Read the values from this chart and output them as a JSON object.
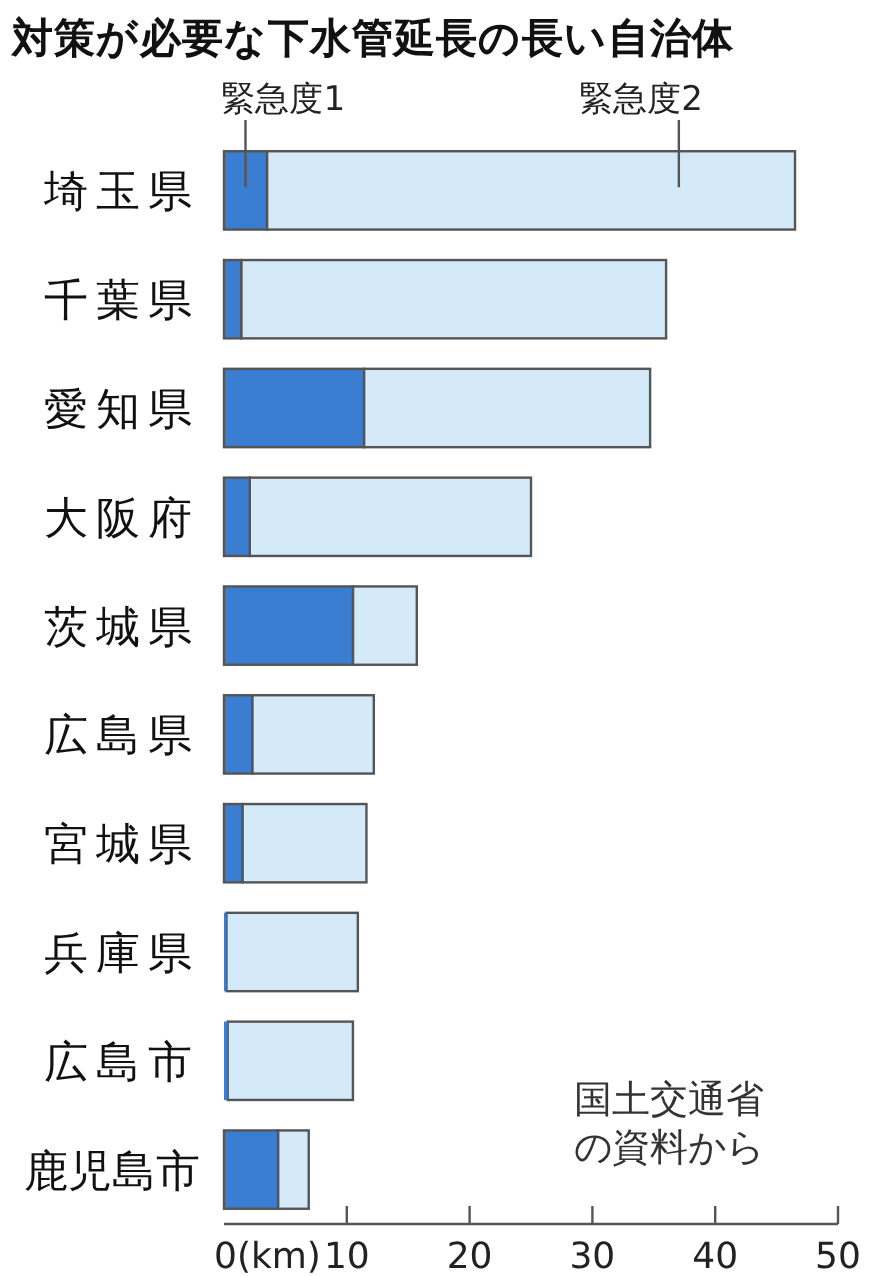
{
  "chart_data": {
    "type": "bar",
    "orientation": "horizontal",
    "stacked": true,
    "title": "対策が必要な下水管延長の長い自治体",
    "categories": [
      "埼玉県",
      "千葉県",
      "愛知県",
      "大阪府",
      "茨城県",
      "広島県",
      "宮城県",
      "兵庫県",
      "広島市",
      "鹿児島市"
    ],
    "series": [
      {
        "name": "緊急度1",
        "color": "#3b7dd0",
        "values": [
          3.5,
          1.4,
          11.4,
          2.1,
          10.5,
          2.3,
          1.5,
          0.2,
          0.3,
          4.4
        ]
      },
      {
        "name": "緊急度2",
        "color": "#d5eaf8",
        "values": [
          43.0,
          34.6,
          23.3,
          22.9,
          5.2,
          9.9,
          10.1,
          10.7,
          10.2,
          2.5
        ]
      }
    ],
    "xlim": [
      0,
      50
    ],
    "xticks": [
      {
        "value": 0,
        "label": "0(km)"
      },
      10,
      20,
      30,
      40,
      50
    ],
    "annotations": [
      "国土交通省の資料から"
    ]
  }
}
